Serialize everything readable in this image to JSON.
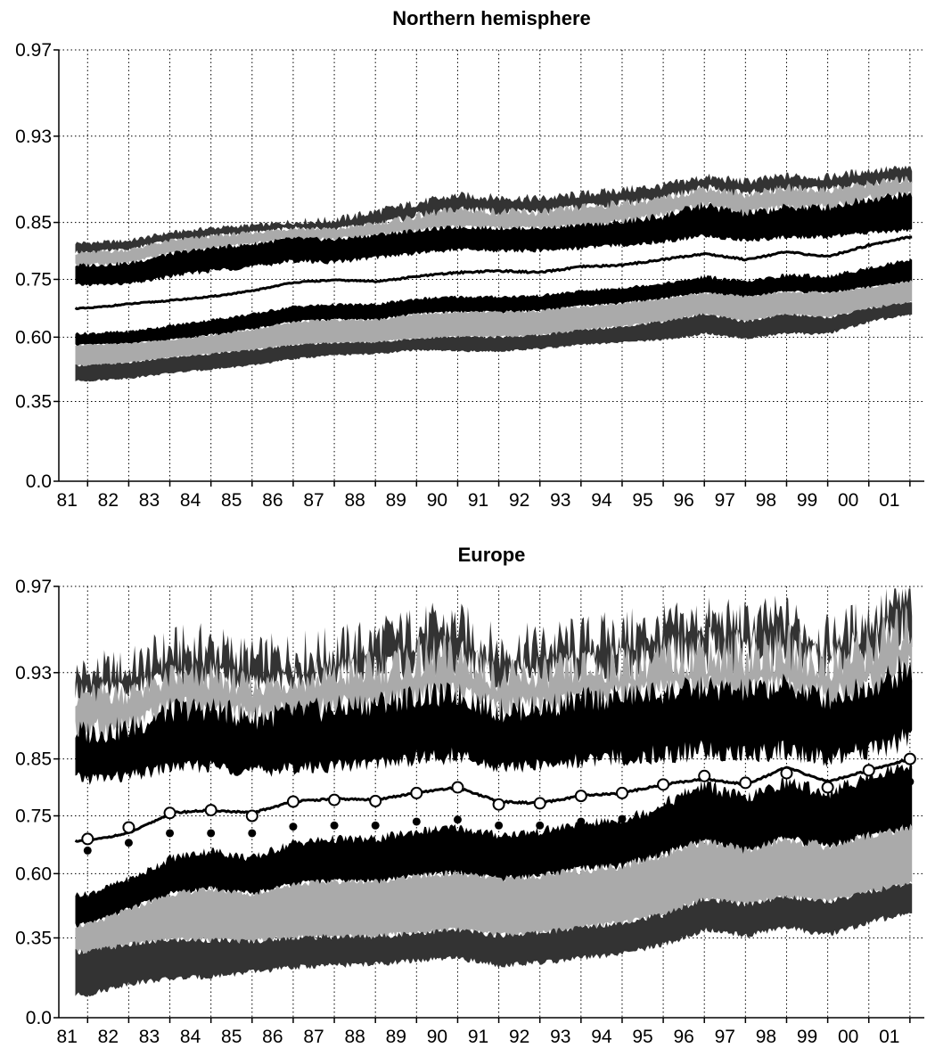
{
  "chart_data": [
    {
      "type": "line",
      "title": "Northern hemisphere",
      "xlabel": "",
      "ylabel": "",
      "x_tick_labels": [
        "81",
        "82",
        "83",
        "84",
        "85",
        "86",
        "87",
        "88",
        "89",
        "90",
        "91",
        "92",
        "93",
        "94",
        "95",
        "96",
        "97",
        "98",
        "99",
        "00",
        "01"
      ],
      "y_tick_labels": [
        "0.0",
        "0.35",
        "0.60",
        "0.75",
        "0.85",
        "0.93",
        "0.97"
      ],
      "y_scale": "nonlinear (probability-like)",
      "grid": true,
      "colors": {
        "outer_band": "#333333",
        "middle_band": "#aaaaaa",
        "inner_band": "#000000",
        "median": "#000000"
      },
      "x": [
        1981.0,
        1982.0,
        1983.0,
        1984.0,
        1985.0,
        1986.0,
        1987.0,
        1988.0,
        1989.0,
        1990.0,
        1991.0,
        1992.0,
        1993.0,
        1994.0,
        1995.0,
        1996.0,
        1997.0,
        1998.0,
        1999.0,
        2000.0,
        2001.0
      ],
      "series": [
        {
          "role": "upper_outer",
          "values": [
            0.814,
            0.818,
            0.832,
            0.84,
            0.845,
            0.85,
            0.852,
            0.86,
            0.868,
            0.875,
            0.873,
            0.872,
            0.876,
            0.88,
            0.884,
            0.892,
            0.888,
            0.893,
            0.892,
            0.898,
            0.9
          ]
        },
        {
          "role": "upper_middle",
          "values": [
            0.797,
            0.802,
            0.818,
            0.826,
            0.832,
            0.84,
            0.838,
            0.848,
            0.856,
            0.862,
            0.86,
            0.859,
            0.864,
            0.868,
            0.872,
            0.882,
            0.876,
            0.882,
            0.88,
            0.886,
            0.89
          ]
        },
        {
          "role": "upper_inner",
          "values": [
            0.775,
            0.778,
            0.795,
            0.805,
            0.812,
            0.822,
            0.82,
            0.828,
            0.836,
            0.842,
            0.84,
            0.84,
            0.845,
            0.85,
            0.856,
            0.866,
            0.858,
            0.864,
            0.864,
            0.872,
            0.876
          ]
        },
        {
          "role": "median",
          "values": [
            0.675,
            0.686,
            0.695,
            0.705,
            0.72,
            0.742,
            0.748,
            0.745,
            0.755,
            0.762,
            0.765,
            0.762,
            0.772,
            0.775,
            0.785,
            0.795,
            0.785,
            0.798,
            0.79,
            0.81,
            0.825
          ]
        },
        {
          "role": "lower_inner",
          "values": [
            0.57,
            0.575,
            0.59,
            0.605,
            0.62,
            0.64,
            0.645,
            0.645,
            0.66,
            0.665,
            0.665,
            0.668,
            0.68,
            0.688,
            0.7,
            0.715,
            0.705,
            0.718,
            0.715,
            0.73,
            0.745
          ]
        },
        {
          "role": "lower_middle",
          "values": [
            0.49,
            0.5,
            0.52,
            0.535,
            0.55,
            0.57,
            0.578,
            0.58,
            0.595,
            0.6,
            0.6,
            0.605,
            0.618,
            0.628,
            0.64,
            0.66,
            0.64,
            0.66,
            0.65,
            0.675,
            0.69
          ]
        },
        {
          "role": "lower_outer",
          "values": [
            0.43,
            0.44,
            0.46,
            0.475,
            0.49,
            0.515,
            0.53,
            0.535,
            0.55,
            0.545,
            0.545,
            0.555,
            0.57,
            0.58,
            0.59,
            0.61,
            0.595,
            0.61,
            0.608,
            0.64,
            0.66
          ]
        }
      ]
    },
    {
      "type": "line",
      "title": "Europe",
      "xlabel": "",
      "ylabel": "",
      "x_tick_labels": [
        "81",
        "82",
        "83",
        "84",
        "85",
        "86",
        "87",
        "88",
        "89",
        "90",
        "91",
        "92",
        "93",
        "94",
        "95",
        "96",
        "97",
        "98",
        "99",
        "00",
        "01"
      ],
      "y_tick_labels": [
        "0.0",
        "0.35",
        "0.60",
        "0.75",
        "0.85",
        "0.93",
        "0.97"
      ],
      "y_scale": "nonlinear (probability-like)",
      "grid": true,
      "colors": {
        "outer_band": "#333333",
        "middle_band": "#aaaaaa",
        "inner_band": "#000000",
        "median": "#000000",
        "markers": "#000000"
      },
      "x": [
        1981.0,
        1982.0,
        1983.0,
        1984.0,
        1985.0,
        1986.0,
        1987.0,
        1988.0,
        1989.0,
        1990.0,
        1991.0,
        1992.0,
        1993.0,
        1994.0,
        1995.0,
        1996.0,
        1997.0,
        1998.0,
        1999.0,
        2000.0,
        2001.0
      ],
      "series": [
        {
          "role": "upper_outer",
          "values": [
            0.928,
            0.93,
            0.94,
            0.942,
            0.935,
            0.938,
            0.94,
            0.945,
            0.95,
            0.952,
            0.94,
            0.942,
            0.945,
            0.948,
            0.95,
            0.954,
            0.952,
            0.955,
            0.945,
            0.955,
            0.964
          ]
        },
        {
          "role": "upper_middle",
          "values": [
            0.91,
            0.912,
            0.924,
            0.925,
            0.918,
            0.922,
            0.925,
            0.93,
            0.935,
            0.937,
            0.924,
            0.926,
            0.93,
            0.933,
            0.936,
            0.94,
            0.938,
            0.942,
            0.932,
            0.942,
            0.952
          ]
        },
        {
          "role": "upper_inner",
          "values": [
            0.875,
            0.878,
            0.895,
            0.897,
            0.888,
            0.893,
            0.897,
            0.902,
            0.908,
            0.91,
            0.895,
            0.898,
            0.905,
            0.908,
            0.912,
            0.916,
            0.913,
            0.918,
            0.906,
            0.918,
            0.93
          ]
        },
        {
          "role": "median",
          "values": [
            0.685,
            0.705,
            0.755,
            0.76,
            0.755,
            0.775,
            0.78,
            0.778,
            0.79,
            0.8,
            0.775,
            0.772,
            0.785,
            0.79,
            0.805,
            0.815,
            0.805,
            0.835,
            0.81,
            0.83,
            0.85
          ]
        },
        {
          "role": "lower_inner",
          "values": [
            0.4,
            0.46,
            0.52,
            0.54,
            0.52,
            0.56,
            0.57,
            0.57,
            0.59,
            0.6,
            0.58,
            0.59,
            0.61,
            0.62,
            0.65,
            0.685,
            0.66,
            0.69,
            0.67,
            0.7,
            0.72
          ]
        },
        {
          "role": "lower_middle",
          "values": [
            0.29,
            0.32,
            0.34,
            0.34,
            0.335,
            0.35,
            0.355,
            0.355,
            0.37,
            0.38,
            0.36,
            0.37,
            0.39,
            0.41,
            0.44,
            0.5,
            0.48,
            0.51,
            0.49,
            0.53,
            0.56
          ]
        },
        {
          "role": "lower_outer",
          "values": [
            0.1,
            0.15,
            0.17,
            0.18,
            0.2,
            0.22,
            0.23,
            0.235,
            0.25,
            0.26,
            0.23,
            0.24,
            0.26,
            0.28,
            0.32,
            0.38,
            0.36,
            0.39,
            0.36,
            0.41,
            0.45
          ]
        },
        {
          "role": "open_circles",
          "values": [
            0.69,
            0.72,
            0.755,
            0.76,
            0.75,
            0.775,
            0.778,
            0.776,
            0.79,
            0.8,
            0.77,
            0.772,
            0.785,
            0.79,
            0.805,
            0.82,
            0.808,
            0.825,
            0.8,
            0.83,
            0.85
          ]
        },
        {
          "role": "filled_dots",
          "values": [
            0.66,
            0.68,
            0.705,
            0.705,
            0.705,
            0.722,
            0.725,
            0.725,
            0.735,
            0.74,
            0.725,
            0.725,
            0.735,
            0.742,
            0.76,
            0.778,
            0.77,
            0.78,
            0.765,
            0.79,
            0.81
          ]
        }
      ]
    }
  ]
}
